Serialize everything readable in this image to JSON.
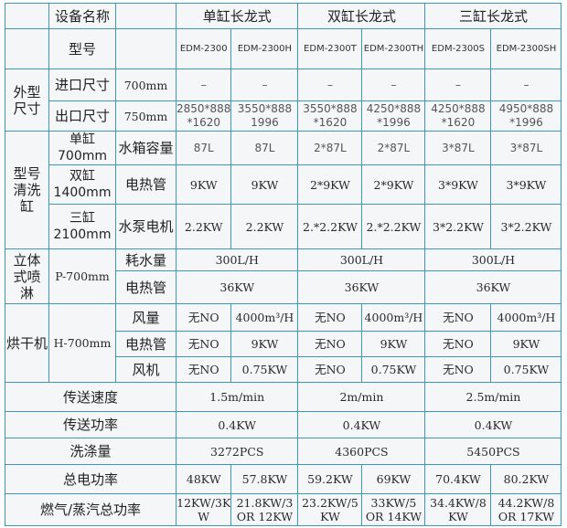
{
  "colors": {
    "border": "#3f97b8",
    "background": "#f4f6f7",
    "text": "#2a2a2a"
  },
  "header": {
    "equipment_name_label": "设备名称",
    "groups": [
      "单缸长龙式",
      "双缸长龙式",
      "三缸长龙式"
    ],
    "model_label": "型号",
    "models": [
      "EDM-2300",
      "EDM-2300H",
      "EDM-2300T",
      "EDM-2300TH",
      "EDM-2300S",
      "EDM-2300SH"
    ]
  },
  "dimensions": {
    "label": "外型\n尺寸",
    "inlet": {
      "label": "进口尺寸",
      "spec": "700mm",
      "values": [
        "–",
        "–",
        "–",
        "–",
        "–",
        "–"
      ]
    },
    "outlet": {
      "label": "出口尺寸",
      "spec": "750mm",
      "values": [
        "2850*888\n*1620",
        "3550*888\n1996",
        "3550*888\n*1620",
        "4250*888\n*1996",
        "4250*888\n*1620",
        "4950*888\n*1996"
      ]
    }
  },
  "wash_tank": {
    "label": "型号\n清洗\n缸",
    "rows": [
      {
        "label": "单缸\n700mm",
        "item": "水箱容量",
        "values": [
          "87L",
          "87L",
          "2*87L",
          "2*87L",
          "3*87L",
          "3*87L"
        ]
      },
      {
        "label": "双缸\n1400mm",
        "item": "电热管",
        "values": [
          "9KW",
          "9KW",
          "2*9KW",
          "2*9KW",
          "3*9KW",
          "3*9KW"
        ]
      },
      {
        "label": "三缸\n2100mm",
        "item": "水泵电机",
        "values": [
          "2.2KW",
          "2.2KW",
          "2.*2.2KW",
          "2.*2.2KW",
          "3*2.2KW",
          "3*2.2KW"
        ]
      }
    ]
  },
  "spray": {
    "label": "立体\n式喷\n淋",
    "spec": "P-700mm",
    "rows": [
      {
        "item": "耗水量",
        "values": [
          "300L/H",
          "300L/H",
          "300L/H"
        ]
      },
      {
        "item": "电热管",
        "values": [
          "36KW",
          "36KW",
          "36KW"
        ]
      }
    ]
  },
  "dryer": {
    "label": "烘干机",
    "spec": "H-700mm",
    "rows": [
      {
        "item": "风量",
        "values": [
          "无NO",
          "4000m³/H",
          "无NO",
          "4000m³/H",
          "无NO",
          "4000m³/H"
        ]
      },
      {
        "item": "电热管",
        "values": [
          "无NO",
          "9KW",
          "无NO",
          "9KW",
          "无NO",
          "9KW"
        ]
      },
      {
        "item": "风机",
        "values": [
          "无NO",
          "0.75KW",
          "无NO",
          "0.75KW",
          "无NO",
          "0.75KW"
        ]
      }
    ]
  },
  "summary": [
    {
      "label": "传送速度",
      "values": [
        "1.5m/min",
        "2m/min",
        "2.5m/min"
      ]
    },
    {
      "label": "传送功率",
      "values": [
        "0.4KW",
        "0.4KW",
        "0.4KW"
      ]
    },
    {
      "label": "洗涤量",
      "values": [
        "3272PCS",
        "4360PCS",
        "5450PCS"
      ]
    },
    {
      "label": "总电功率",
      "values": [
        "48KW",
        "57.8KW",
        "59.2KW",
        "69KW",
        "70.4KW",
        "80.2KW"
      ]
    },
    {
      "label": "燃气/蒸汽总功率",
      "values": [
        "12KW/3K\nW",
        "21.8KW/3\nOR 12KW",
        "23.2KW/5\nKW",
        "33KW/5\nOR 14KW",
        "34.4KW/8\nKW",
        "44.2KW/8\nOR 17KW"
      ]
    }
  ]
}
